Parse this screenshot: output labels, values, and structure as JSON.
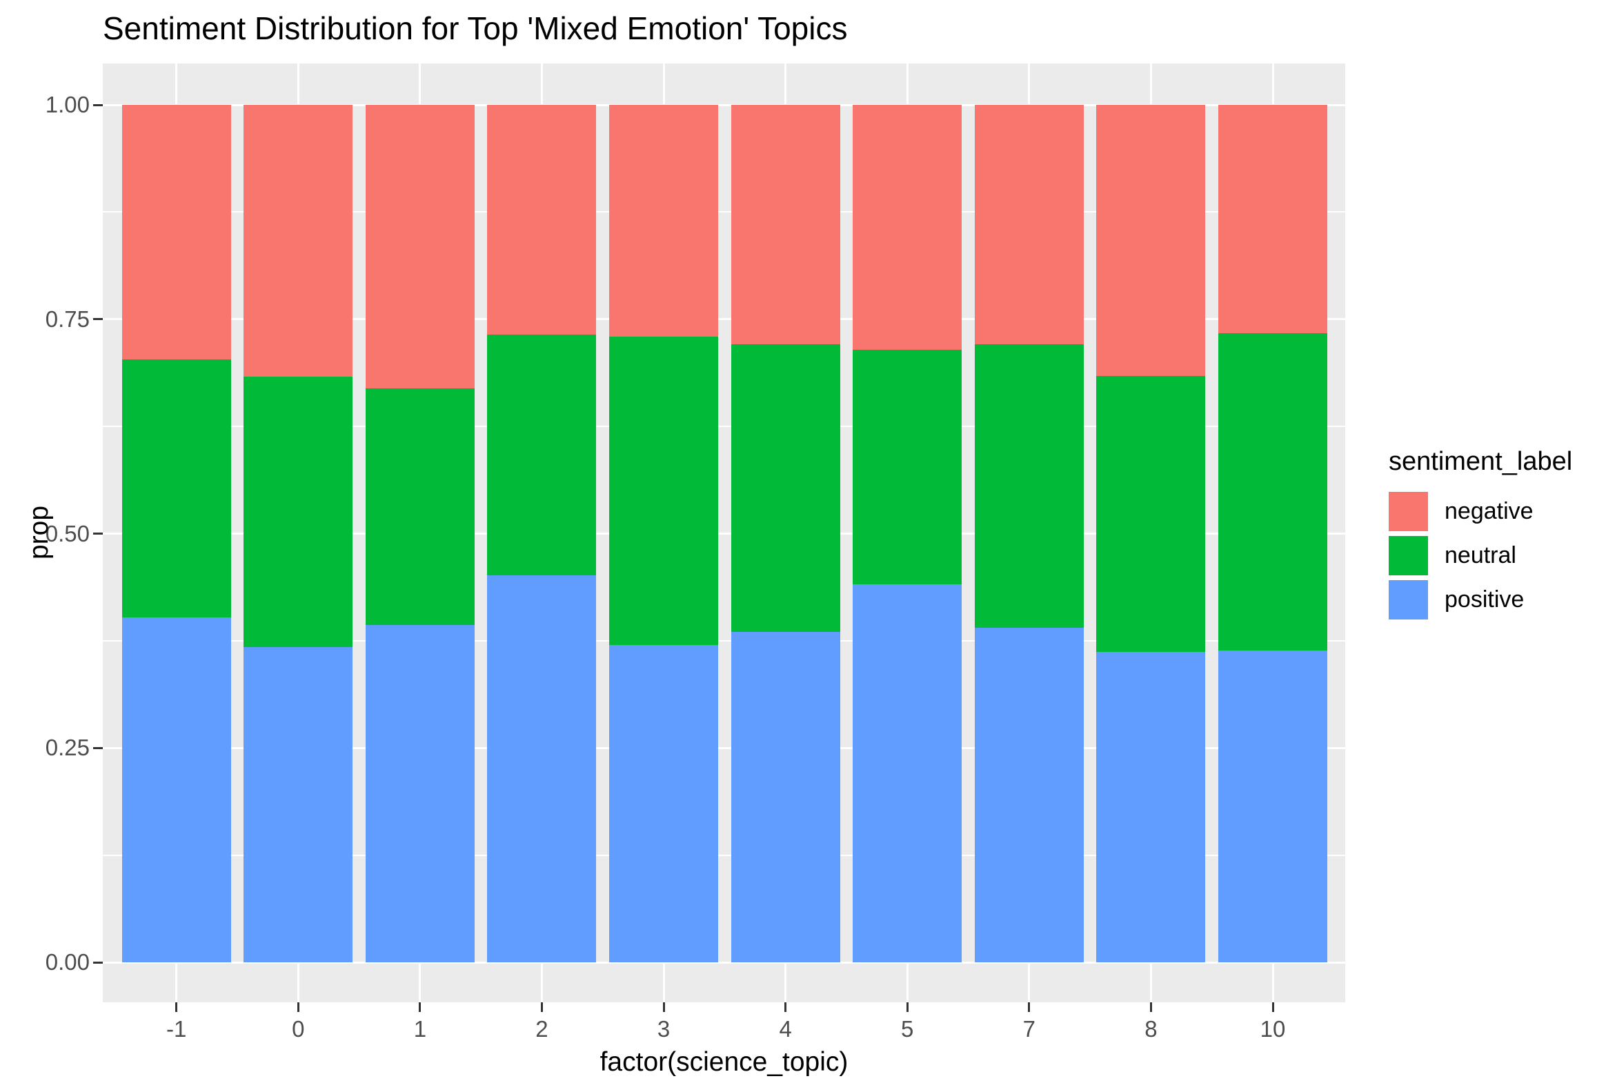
{
  "title": "Sentiment Distribution for Top 'Mixed Emotion' Topics",
  "colors": {
    "background": "#FFFFFF",
    "panel_background": "#EBEBEB",
    "gridline": "#FFFFFF",
    "tick_text": "#4D4D4D",
    "tick_mark": "#333333",
    "title_text": "#000000",
    "negative": "#F8766D",
    "neutral": "#00BA38",
    "positive": "#619CFF"
  },
  "chart_data": {
    "type": "bar",
    "stacked": true,
    "normalized": true,
    "title": "Sentiment Distribution for Top 'Mixed Emotion' Topics",
    "xlabel": "factor(science_topic)",
    "ylabel": "prop",
    "categories": [
      "-1",
      "0",
      "1",
      "2",
      "3",
      "4",
      "5",
      "7",
      "8",
      "10"
    ],
    "ylim": [
      0,
      1
    ],
    "y_ticks": [
      {
        "value": 0.0,
        "label": "0.00"
      },
      {
        "value": 0.25,
        "label": "0.25"
      },
      {
        "value": 0.5,
        "label": "0.50"
      },
      {
        "value": 0.75,
        "label": "0.75"
      },
      {
        "value": 1.0,
        "label": "1.00"
      }
    ],
    "y_minor_gridlines": [
      0.125,
      0.375,
      0.625,
      0.875
    ],
    "series": [
      {
        "name": "positive",
        "color": "#619CFF",
        "stack_order": "bottom",
        "values": [
          0.402,
          0.368,
          0.393,
          0.451,
          0.37,
          0.385,
          0.441,
          0.39,
          0.362,
          0.364
        ]
      },
      {
        "name": "neutral",
        "color": "#00BA38",
        "stack_order": "middle",
        "values": [
          0.301,
          0.315,
          0.276,
          0.281,
          0.36,
          0.336,
          0.273,
          0.331,
          0.322,
          0.37
        ]
      },
      {
        "name": "negative",
        "color": "#F8766D",
        "stack_order": "top",
        "values": [
          0.297,
          0.317,
          0.331,
          0.268,
          0.27,
          0.279,
          0.286,
          0.279,
          0.316,
          0.266
        ]
      }
    ],
    "legend": {
      "title": "sentiment_label",
      "position": "right",
      "entries": [
        {
          "label": "negative",
          "color": "#F8766D"
        },
        {
          "label": "neutral",
          "color": "#00BA38"
        },
        {
          "label": "positive",
          "color": "#619CFF"
        }
      ]
    },
    "grid": {
      "major": true,
      "minor": true,
      "background": "#EBEBEB"
    }
  }
}
